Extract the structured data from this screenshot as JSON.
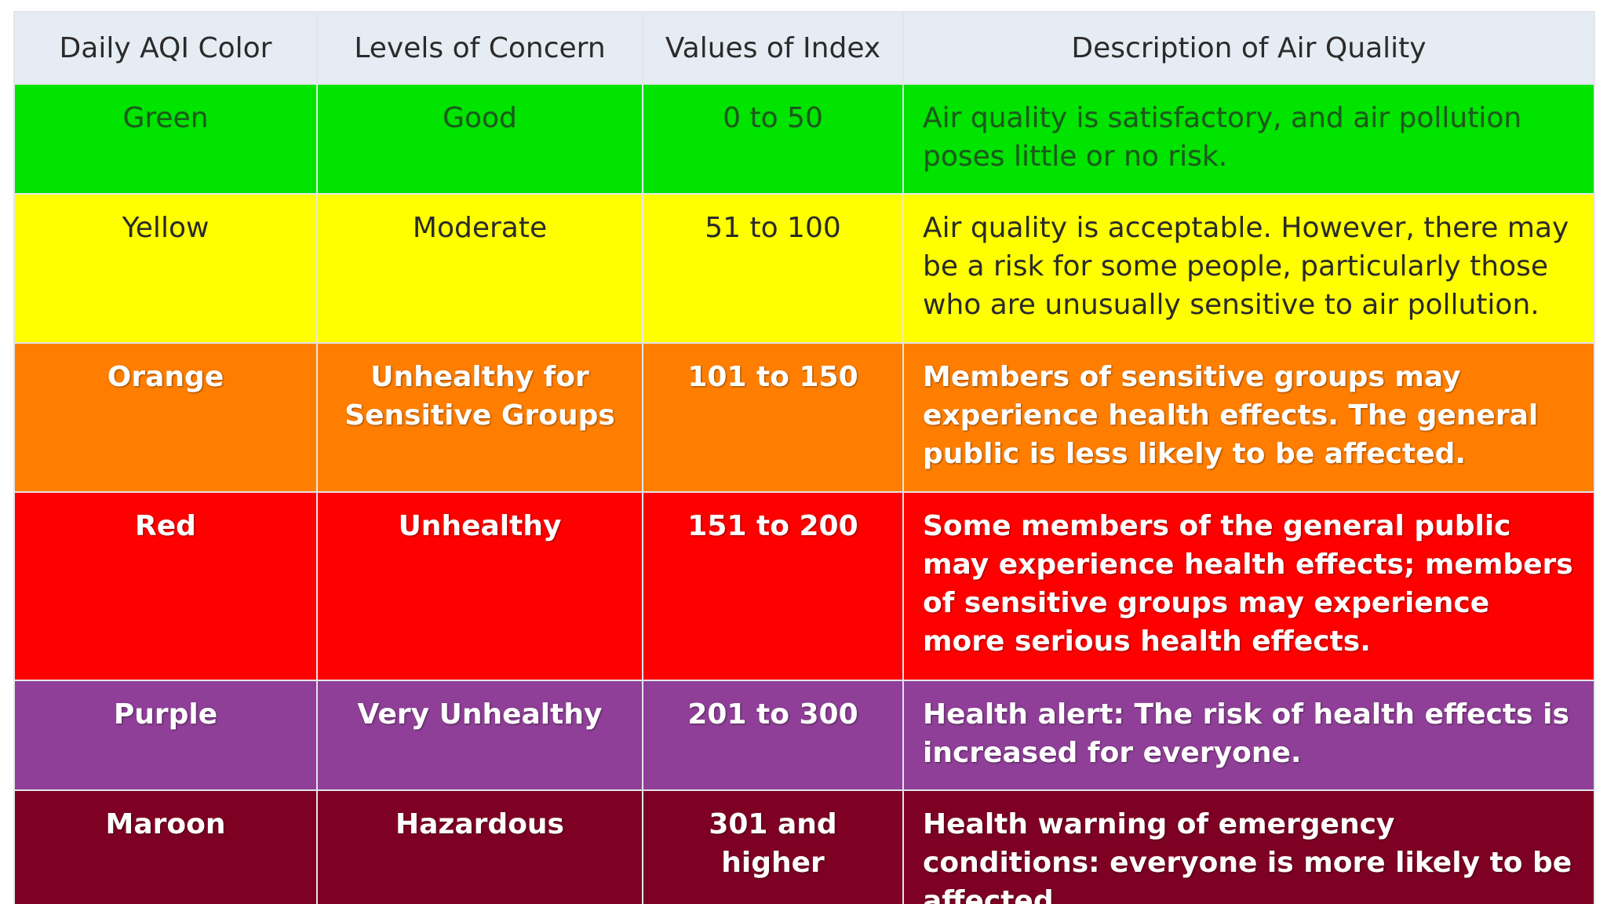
{
  "table": {
    "headers": [
      "Daily AQI Color",
      "Levels of Concern",
      "Values of Index",
      "Description of Air Quality"
    ],
    "rows": [
      {
        "color": "Green",
        "level": "Good",
        "values": "0 to 50",
        "description": "Air quality is satisfactory, and air pollution poses little or no risk.",
        "background": "#00e400",
        "text_style": "green"
      },
      {
        "color": "Yellow",
        "level": "Moderate",
        "values": "51 to 100",
        "description": "Air quality is acceptable. However, there may be a risk for some people, particularly those who are unusually sensitive to air pollution.",
        "background": "#ffff00",
        "text_style": "dark"
      },
      {
        "color": "Orange",
        "level": "Unhealthy for Sensitive Groups",
        "values": "101 to 150",
        "description": "Members of sensitive groups may experience health effects. The general public is less likely to be affected.",
        "background": "#ff7e00",
        "text_style": "light"
      },
      {
        "color": "Red",
        "level": "Unhealthy",
        "values": "151 to 200",
        "description": "Some members of the general public may experience health effects; members of sensitive groups may experience more serious health effects.",
        "background": "#ff0000",
        "text_style": "light"
      },
      {
        "color": "Purple",
        "level": "Very Unhealthy",
        "values": "201 to 300",
        "description": "Health alert: The risk of health effects is increased for everyone.",
        "background": "#8f3f97",
        "text_style": "light"
      },
      {
        "color": "Maroon",
        "level": "Hazardous",
        "values": "301 and higher",
        "description": "Health warning of emergency conditions: everyone is more likely to be affected.",
        "background": "#7e0023",
        "text_style": "light"
      }
    ]
  }
}
